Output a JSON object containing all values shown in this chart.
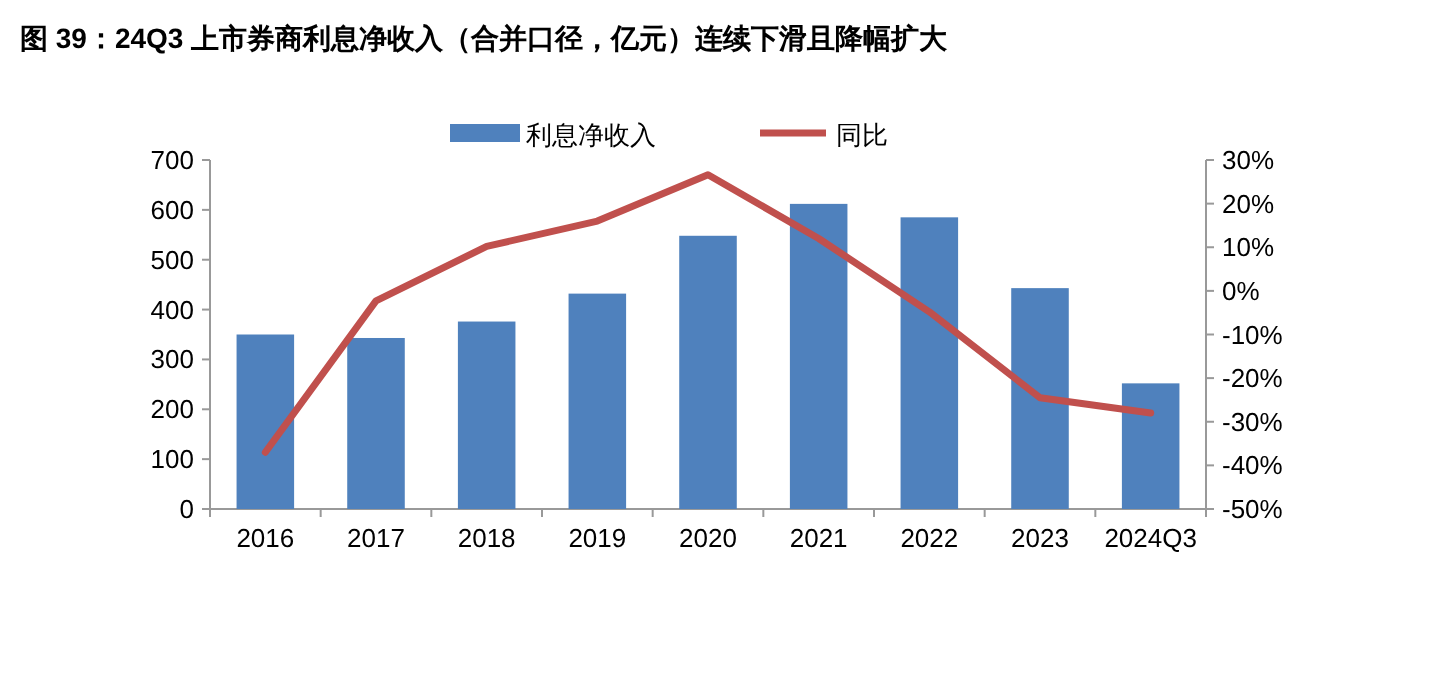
{
  "chart_data": {
    "type": "bar",
    "title": "图 39：24Q3 上市券商利息净收入（合并口径，亿元）连续下滑且降幅扩大",
    "categories": [
      "2016",
      "2017",
      "2018",
      "2019",
      "2020",
      "2021",
      "2022",
      "2023",
      "2024Q3"
    ],
    "series": [
      {
        "name": "利息净收入",
        "color": "#4f81bd",
        "values": [
          350,
          343,
          376,
          432,
          548,
          612,
          585,
          443,
          252
        ]
      },
      {
        "name": "同比",
        "type": "line",
        "axis": "y2",
        "color": "#c0504d",
        "values": [
          -37,
          -2.3,
          10.2,
          16,
          26.6,
          12,
          -4.8,
          -24.5,
          -28
        ]
      }
    ],
    "ylim": [
      0,
      700
    ],
    "yticks": [
      0,
      100,
      200,
      300,
      400,
      500,
      600,
      700
    ],
    "y2lim": [
      -50,
      30
    ],
    "y2ticks": [
      {
        "value": -50,
        "label": "-50%"
      },
      {
        "value": -40,
        "label": "-40%"
      },
      {
        "value": -30,
        "label": "-30%"
      },
      {
        "value": -20,
        "label": "-20%"
      },
      {
        "value": -10,
        "label": "-10%"
      },
      {
        "value": 0,
        "label": "0%"
      },
      {
        "value": 10,
        "label": "10%"
      },
      {
        "value": 20,
        "label": "20%"
      },
      {
        "value": 30,
        "label": "30%"
      }
    ],
    "grid": false,
    "legend": "top",
    "marker": "none",
    "line_style": "solid"
  }
}
